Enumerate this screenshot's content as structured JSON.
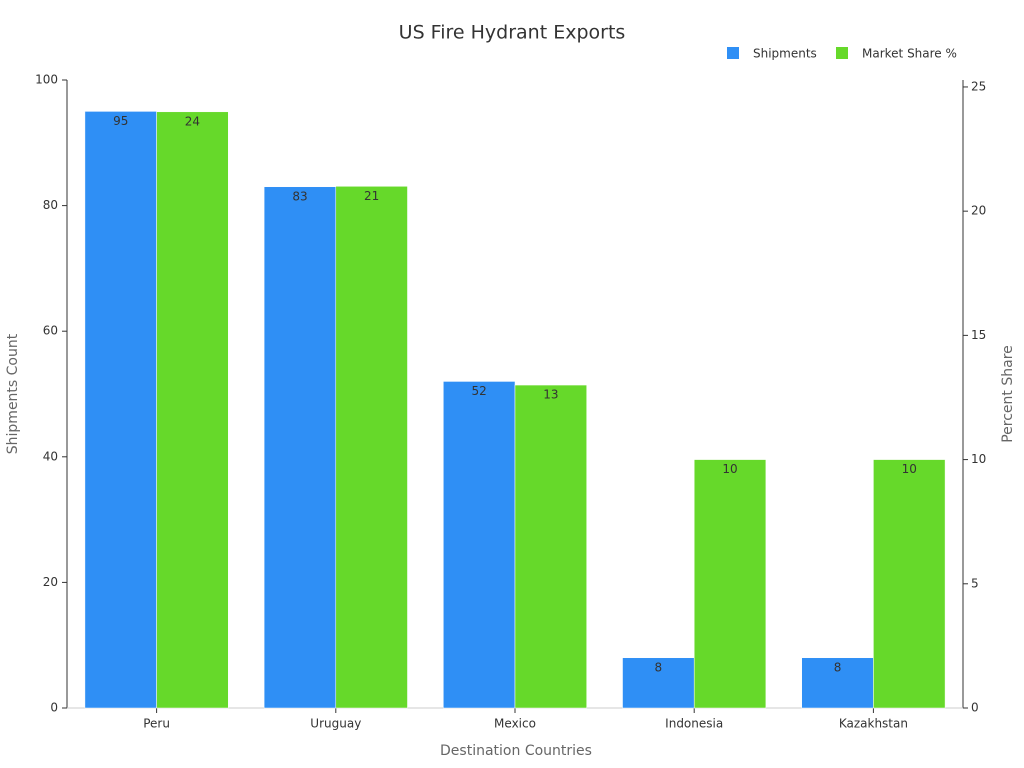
{
  "chart_data": {
    "type": "bar",
    "title": "US Fire Hydrant Exports",
    "x_label": "Destination Countries",
    "y_label": "Shipments Count",
    "y2_label": "Percent Share",
    "categories": [
      "Peru",
      "Uruguay",
      "Mexico",
      "Indonesia",
      "Kazakhstan"
    ],
    "series": [
      {
        "name": "Shipments",
        "color": "#2f8ff5",
        "values": [
          95,
          83,
          52,
          8,
          8
        ]
      },
      {
        "name": "Market Share %",
        "color": "#66d92a",
        "axis": "y2",
        "values": [
          24,
          21,
          13,
          10,
          10
        ]
      }
    ],
    "ylim": [
      0,
      100
    ],
    "yticks": [
      0,
      20,
      40,
      60,
      80,
      100
    ],
    "y2lim": [
      0,
      25.28
    ],
    "y2ticks": [
      0,
      5,
      10,
      15,
      20,
      25
    ],
    "legend": "top-right",
    "grid": false
  }
}
